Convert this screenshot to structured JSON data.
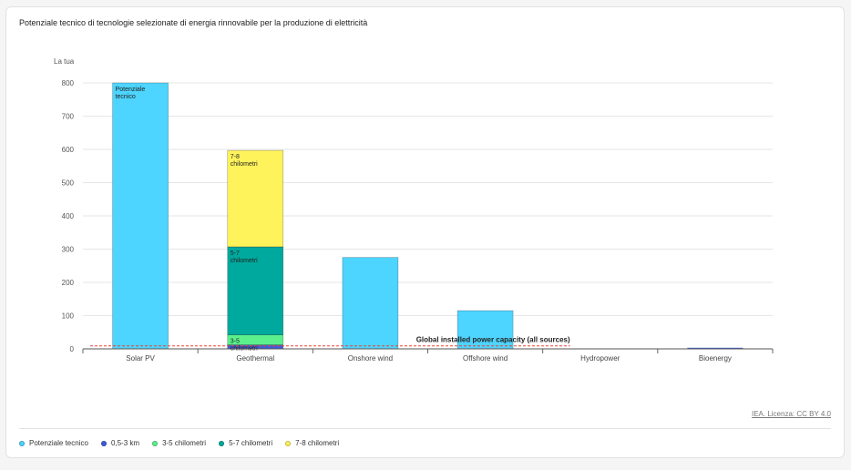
{
  "title": "Potenziale tecnico di tecnologie selezionate di energia rinnovabile per la produzione di elettricità",
  "source_label": "IEA. Licenza: CC BY 4.0",
  "legend": [
    {
      "name": "Potenziale tecnico",
      "color": "#4dd4ff"
    },
    {
      "name": "0,5-3 km",
      "color": "#3f5bd8"
    },
    {
      "name": "3-5 chilometri",
      "color": "#5cf08d"
    },
    {
      "name": "5-7 chilometri",
      "color": "#00a99d"
    },
    {
      "name": "7-8 chilometri",
      "color": "#fff35c"
    }
  ],
  "chart_data": {
    "type": "bar",
    "stacked": true,
    "ylabel": "La tua",
    "ylim": [
      0,
      800
    ],
    "yticks": [
      0,
      100,
      200,
      300,
      400,
      500,
      600,
      700,
      800
    ],
    "categories": [
      "Solar PV",
      "Geothermal",
      "Onshore wind",
      "Offshore wind",
      "Hydropower",
      "Bioenergy"
    ],
    "series": [
      {
        "name": "Potenziale tecnico",
        "color": "#4dd4ff",
        "values": [
          800,
          0,
          275,
          115,
          0,
          0
        ]
      },
      {
        "name": "0,5-3 km",
        "color": "#3f5bd8",
        "values": [
          0,
          12,
          0,
          0,
          0,
          0
        ]
      },
      {
        "name": "3-5 chilometri",
        "color": "#5cf08d",
        "values": [
          0,
          30,
          0,
          0,
          0,
          0
        ]
      },
      {
        "name": "5-7 chilometri",
        "color": "#00a99d",
        "values": [
          0,
          265,
          0,
          0,
          0,
          0
        ]
      },
      {
        "name": "7-8 chilometri",
        "color": "#fff35c",
        "values": [
          0,
          290,
          0,
          0,
          0,
          0
        ]
      }
    ],
    "bar_labels": [
      {
        "category": "Solar PV",
        "series": "Potenziale tecnico",
        "text": "Potenziale tecnico"
      },
      {
        "category": "Geothermal",
        "series": "3-5 chilometri",
        "text": "3-5 chilometri"
      },
      {
        "category": "Geothermal",
        "series": "5-7 chilometri",
        "text": "5-7 chilometri"
      },
      {
        "category": "Geothermal",
        "series": "7-8 chilometri",
        "text": "7-8 chilometri"
      }
    ],
    "reference_line": {
      "value": 9,
      "label": "Global installed power capacity (all sources)",
      "color": "#e8433a"
    },
    "grid": true,
    "legend_position": "bottom-left"
  }
}
